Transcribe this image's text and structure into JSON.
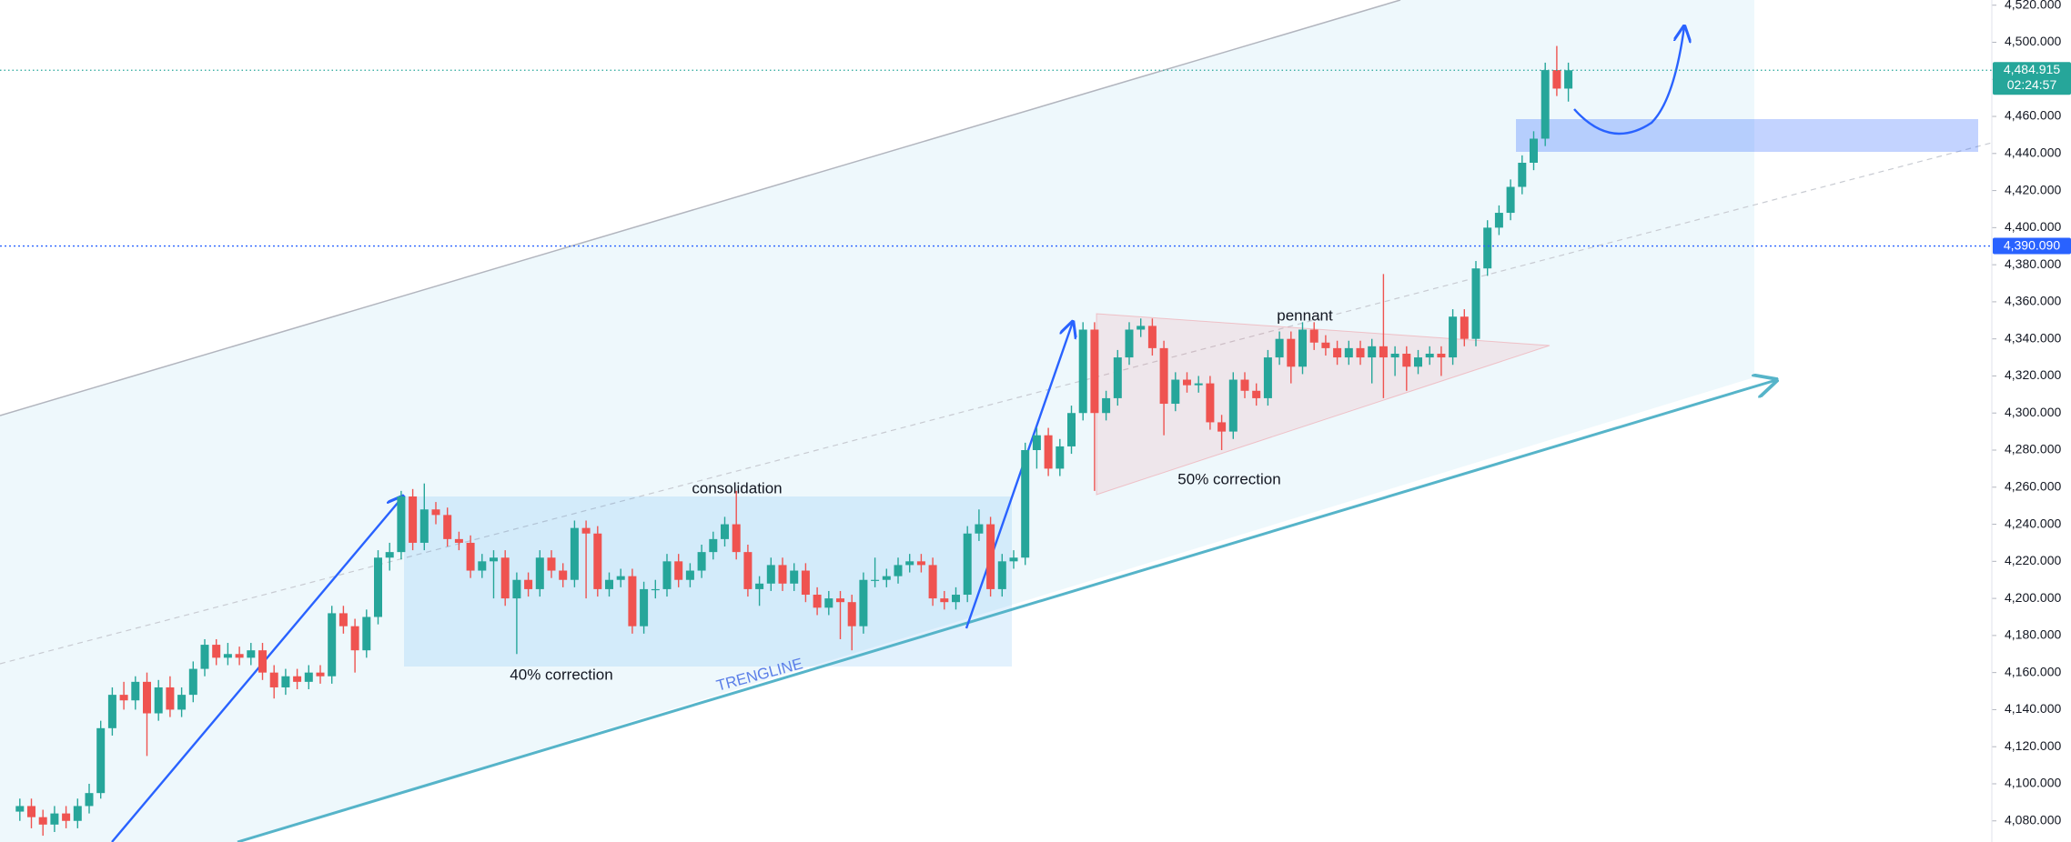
{
  "chart_data": {
    "type": "candlestick",
    "up_color": "#26a69a",
    "down_color": "#ef5350",
    "ylim": [
      4068.6,
      4522.8
    ],
    "yticks": [
      {
        "value": 4080,
        "label": "4,080.000"
      },
      {
        "value": 4100,
        "label": "4,100.000"
      },
      {
        "value": 4120,
        "label": "4,120.000"
      },
      {
        "value": 4140,
        "label": "4,140.000"
      },
      {
        "value": 4160,
        "label": "4,160.000"
      },
      {
        "value": 4180,
        "label": "4,180.000"
      },
      {
        "value": 4200,
        "label": "4,200.000"
      },
      {
        "value": 4220,
        "label": "4,220.000"
      },
      {
        "value": 4240,
        "label": "4,240.000"
      },
      {
        "value": 4260,
        "label": "4,260.000"
      },
      {
        "value": 4280,
        "label": "4,280.000"
      },
      {
        "value": 4300,
        "label": "4,300.000"
      },
      {
        "value": 4320,
        "label": "4,320.000"
      },
      {
        "value": 4340,
        "label": "4,340.000"
      },
      {
        "value": 4360,
        "label": "4,360.000"
      },
      {
        "value": 4380,
        "label": "4,380.000"
      },
      {
        "value": 4400,
        "label": "4,400.000"
      },
      {
        "value": 4420,
        "label": "4,420.000"
      },
      {
        "value": 4440,
        "label": "4,440.000"
      },
      {
        "value": 4460,
        "label": "4,460.000"
      },
      {
        "value": 4480,
        "label": "4,480.000"
      },
      {
        "value": 4500,
        "label": "4,500.000"
      },
      {
        "value": 4520,
        "label": "4,520.000"
      }
    ],
    "open": [
      4085,
      4088,
      4082,
      4078,
      4084,
      4080,
      4088,
      4095,
      4130,
      4148,
      4145,
      4155,
      4138,
      4152,
      4140,
      4148,
      4162,
      4175,
      4168,
      4170,
      4168,
      4172,
      4160,
      4152,
      4158,
      4155,
      4160,
      4158,
      4192,
      4185,
      4172,
      4190,
      4222,
      4225,
      4255,
      4230,
      4248,
      4245,
      4232,
      4230,
      4215,
      4220,
      4222,
      4200,
      4210,
      4205,
      4222,
      4215,
      4210,
      4238,
      4235,
      4205,
      4210,
      4212,
      4185,
      4205,
      4205,
      4220,
      4210,
      4215,
      4225,
      4232,
      4240,
      4225,
      4205,
      4208,
      4218,
      4208,
      4215,
      4202,
      4195,
      4200,
      4198,
      4185,
      4210,
      4210,
      4212,
      4218,
      4220,
      4218,
      4200,
      4198,
      4202,
      4235,
      4240,
      4205,
      4220,
      4222,
      4280,
      4288,
      4270,
      4282,
      4300,
      4345,
      4300,
      4308,
      4330,
      4345,
      4347,
      4335,
      4305,
      4318,
      4315,
      4316,
      4295,
      4290,
      4318,
      4312,
      4308,
      4330,
      4340,
      4325,
      4345,
      4338,
      4335,
      4330,
      4335,
      4330,
      4336,
      4330,
      4332,
      4325,
      4330,
      4332,
      4330,
      4352,
      4340,
      4378,
      4400,
      4408,
      4422,
      4435,
      4448,
      4485,
      4475
    ],
    "high": [
      4092,
      4092,
      4086,
      4088,
      4088,
      4092,
      4100,
      4134,
      4152,
      4155,
      4158,
      4160,
      4156,
      4158,
      4152,
      4166,
      4178,
      4178,
      4176,
      4174,
      4176,
      4176,
      4164,
      4162,
      4162,
      4164,
      4164,
      4196,
      4196,
      4189,
      4194,
      4226,
      4230,
      4258,
      4259,
      4262,
      4252,
      4249,
      4236,
      4234,
      4224,
      4226,
      4226,
      4214,
      4214,
      4226,
      4226,
      4219,
      4242,
      4242,
      4239,
      4214,
      4216,
      4216,
      4209,
      4210,
      4224,
      4224,
      4219,
      4229,
      4236,
      4244,
      4258,
      4229,
      4212,
      4222,
      4222,
      4219,
      4219,
      4206,
      4204,
      4204,
      4202,
      4214,
      4222,
      4216,
      4222,
      4224,
      4224,
      4222,
      4204,
      4206,
      4239,
      4248,
      4244,
      4224,
      4226,
      4284,
      4292,
      4292,
      4286,
      4304,
      4349,
      4349,
      4312,
      4334,
      4349,
      4351,
      4351,
      4339,
      4322,
      4322,
      4320,
      4320,
      4299,
      4322,
      4322,
      4316,
      4334,
      4344,
      4344,
      4349,
      4349,
      4342,
      4339,
      4339,
      4339,
      4340,
      4375,
      4336,
      4336,
      4334,
      4336,
      4336,
      4356,
      4356,
      4382,
      4404,
      4412,
      4426,
      4439,
      4452,
      4489,
      4498,
      4489
    ],
    "low": [
      4080,
      4076,
      4072,
      4074,
      4076,
      4076,
      4084,
      4092,
      4126,
      4140,
      4140,
      4115,
      4134,
      4136,
      4136,
      4144,
      4158,
      4164,
      4164,
      4164,
      4164,
      4156,
      4146,
      4148,
      4151,
      4151,
      4154,
      4154,
      4181,
      4160,
      4168,
      4186,
      4215,
      4221,
      4226,
      4226,
      4240,
      4228,
      4226,
      4211,
      4211,
      4200,
      4196,
      4170,
      4201,
      4201,
      4211,
      4206,
      4206,
      4200,
      4201,
      4201,
      4206,
      4181,
      4181,
      4200,
      4201,
      4206,
      4206,
      4211,
      4221,
      4228,
      4221,
      4201,
      4196,
      4204,
      4204,
      4204,
      4198,
      4191,
      4191,
      4178,
      4172,
      4181,
      4206,
      4206,
      4208,
      4214,
      4214,
      4196,
      4194,
      4194,
      4198,
      4231,
      4201,
      4201,
      4216,
      4218,
      4270,
      4266,
      4266,
      4278,
      4296,
      4258,
      4296,
      4304,
      4326,
      4341,
      4331,
      4288,
      4301,
      4311,
      4311,
      4291,
      4280,
      4286,
      4308,
      4304,
      4304,
      4326,
      4316,
      4321,
      4334,
      4331,
      4326,
      4326,
      4326,
      4316,
      4308,
      4320,
      4312,
      4321,
      4326,
      4320,
      4326,
      4336,
      4336,
      4374,
      4396,
      4404,
      4418,
      4431,
      4444,
      4471,
      4468
    ],
    "close": [
      4088,
      4082,
      4078,
      4084,
      4080,
      4088,
      4095,
      4130,
      4148,
      4145,
      4155,
      4138,
      4152,
      4140,
      4148,
      4162,
      4175,
      4168,
      4170,
      4168,
      4172,
      4160,
      4152,
      4158,
      4155,
      4160,
      4158,
      4192,
      4185,
      4172,
      4190,
      4222,
      4225,
      4255,
      4230,
      4248,
      4245,
      4232,
      4230,
      4215,
      4220,
      4222,
      4200,
      4210,
      4205,
      4222,
      4215,
      4210,
      4238,
      4235,
      4205,
      4210,
      4212,
      4185,
      4205,
      4205,
      4220,
      4210,
      4215,
      4225,
      4232,
      4240,
      4225,
      4205,
      4208,
      4218,
      4208,
      4215,
      4202,
      4195,
      4200,
      4198,
      4185,
      4210,
      4210,
      4212,
      4218,
      4220,
      4218,
      4200,
      4198,
      4202,
      4235,
      4240,
      4205,
      4220,
      4222,
      4280,
      4288,
      4270,
      4282,
      4300,
      4345,
      4300,
      4308,
      4330,
      4345,
      4347,
      4335,
      4305,
      4318,
      4315,
      4316,
      4295,
      4290,
      4318,
      4312,
      4308,
      4330,
      4340,
      4325,
      4345,
      4338,
      4335,
      4330,
      4335,
      4330,
      4336,
      4330,
      4332,
      4325,
      4330,
      4332,
      4330,
      4352,
      4340,
      4378,
      4400,
      4408,
      4422,
      4435,
      4448,
      4485,
      4475,
      4484.915
    ],
    "price_lines": [
      {
        "value": 4484.915,
        "label": "4,484.915",
        "countdown": "02:24:57",
        "color": "#26a69a"
      },
      {
        "value": 4390.09,
        "label": "4,390.090",
        "color": "#2962ff"
      }
    ],
    "annotations": [
      {
        "text": "consolidation"
      },
      {
        "text": "40% correction"
      },
      {
        "text": "pennant"
      },
      {
        "text": "50% correction"
      },
      {
        "text": "TRENGLINE"
      }
    ]
  }
}
